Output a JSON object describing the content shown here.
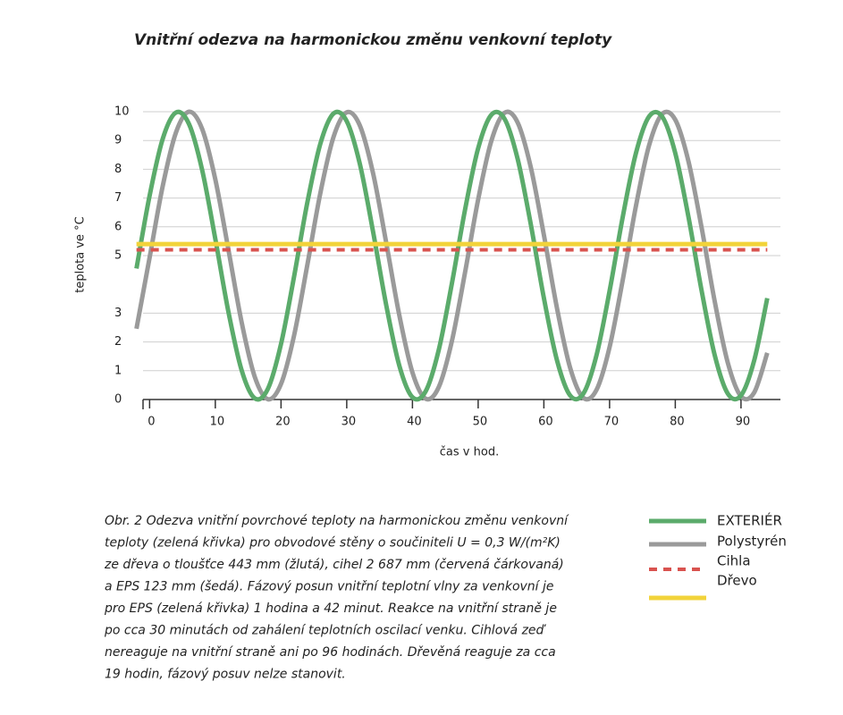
{
  "chart_data": {
    "type": "line",
    "title": "Vnitřní odezva na harmonickou změnu venkovní teploty",
    "y_label": "teplota ve °C",
    "x_label": "čas v hod.",
    "x": [
      -2,
      0,
      2,
      4,
      6,
      8,
      10,
      12,
      14,
      16,
      18,
      20,
      22,
      24,
      26,
      28,
      30,
      32,
      34,
      36,
      38,
      40,
      42,
      44,
      46,
      48,
      50,
      52,
      54,
      56,
      58,
      60,
      62,
      64,
      66,
      68,
      70,
      72,
      74,
      76,
      78,
      80,
      82,
      84,
      86,
      88,
      90,
      92,
      94
    ],
    "series": [
      {
        "name": "EXTERIÉR",
        "color": "#5bab6b",
        "dash": false,
        "values": [
          4.55,
          7.08,
          9.06,
          9.97,
          9.57,
          7.97,
          5.58,
          3.04,
          1.02,
          0.04,
          0.37,
          1.93,
          4.29,
          6.84,
          8.9,
          9.94,
          9.67,
          8.18,
          5.84,
          3.29,
          1.18,
          0.08,
          0.28,
          1.72,
          4.03,
          6.59,
          8.73,
          9.89,
          9.76,
          8.37,
          6.1,
          3.53,
          1.36,
          0.14,
          0.2,
          1.53,
          3.77,
          6.34,
          8.55,
          9.83,
          9.83,
          8.56,
          6.35,
          3.79,
          1.54,
          0.2,
          0.14,
          1.35,
          3.52
        ]
      },
      {
        "name": "Polystyrén",
        "color": "#9a9a9a",
        "dash": false,
        "values": [
          2.46,
          4.93,
          7.42,
          9.27,
          10.0,
          9.4,
          7.65,
          5.2,
          2.69,
          0.79,
          0.01,
          0.54,
          2.24,
          4.67,
          7.19,
          9.13,
          9.98,
          9.52,
          7.87,
          5.46,
          2.93,
          0.94,
          0.03,
          0.43,
          2.03,
          4.41,
          6.95,
          8.98,
          9.96,
          9.63,
          8.08,
          5.72,
          3.17,
          1.1,
          0.06,
          0.33,
          1.82,
          4.15,
          6.71,
          8.82,
          9.92,
          9.72,
          8.28,
          5.98,
          3.41,
          1.27,
          0.11,
          0.24,
          1.62
        ]
      },
      {
        "name": "Cihla",
        "color": "#d9534f",
        "dash": true,
        "x": [
          -2,
          94
        ],
        "values": [
          5.2,
          5.2
        ]
      },
      {
        "name": "Dřevo",
        "color": "#f2d33a",
        "dash": false,
        "x": [
          -2,
          94
        ],
        "values": [
          5.4,
          5.4
        ]
      }
    ],
    "xlim": [
      -1,
      96
    ],
    "ylim": [
      0,
      10
    ],
    "xticks": [
      0,
      10,
      20,
      30,
      40,
      50,
      60,
      70,
      80,
      90
    ],
    "yticks": [
      0,
      1,
      2,
      3,
      5,
      6,
      7,
      8,
      9,
      10
    ],
    "grid": true,
    "caption": [
      "Obr. 2 Odezva vnitřní povrchové teploty na harmonickou změnu venkovní",
      "teploty (zelená křivka) pro obvodové stěny o součiniteli U = 0,3 W/(m²K)",
      "ze dřeva o tloušťce 443 mm (žlutá), cihel 2 687 mm (červená čárkovaná)",
      "a EPS 123 mm (šedá). Fázový posun vnitřní teplotní vlny za venkovní je",
      "pro EPS (zelená křivka) 1 hodina a 42 minut. Reakce na vnitřní straně je",
      "po cca 30 minutách od zahálení teplotních oscilací venku. Cihlová zeď",
      "nereaguje na vnitřní straně ani po 96 hodinách. Dřevěná reaguje za cca",
      "19 hodin, fázový posuv nelze stanovit."
    ]
  }
}
